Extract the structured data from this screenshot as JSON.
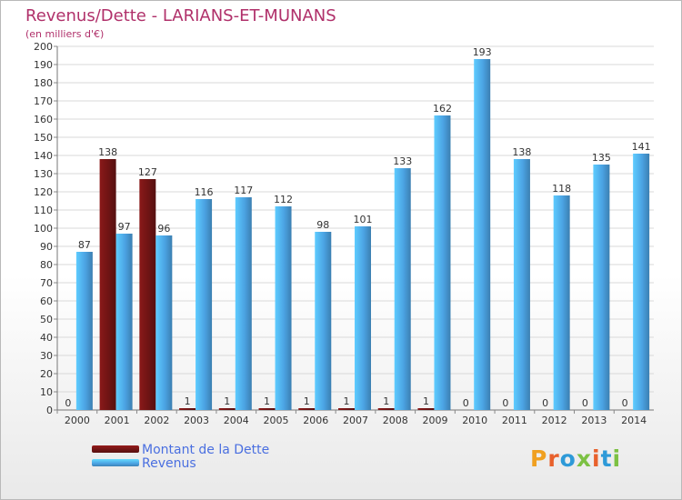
{
  "title": "Revenus/Dette - LARIANS-ET-MUNANS",
  "subtitle": "(en milliers d'€)",
  "brand": "Proxiti",
  "brand_colors": [
    "#f0a020",
    "#e8612c",
    "#2e9ad8",
    "#7cc143",
    "#e8612c",
    "#2e9ad8",
    "#7cc143"
  ],
  "colors": {
    "dette": "#6e1414",
    "revenus": "#4ba3e3",
    "title": "#b0306a",
    "legend_text": "#4a6fe0",
    "grid": "#d9d9d9"
  },
  "legend": {
    "items": [
      {
        "label": "Montant de la Dette",
        "color": "#6e1414"
      },
      {
        "label": "Revenus",
        "color": "#4ba3e3"
      }
    ]
  },
  "chart_data": {
    "type": "bar",
    "title": "Revenus/Dette - LARIANS-ET-MUNANS",
    "ylabel": "(en milliers d'€)",
    "xlabel": "",
    "ylim": [
      0,
      200
    ],
    "ytick_step": 10,
    "grid": true,
    "legend_position": "bottom-left",
    "categories": [
      "2000",
      "2001",
      "2002",
      "2003",
      "2004",
      "2005",
      "2006",
      "2007",
      "2008",
      "2009",
      "2010",
      "2011",
      "2012",
      "2013",
      "2014"
    ],
    "series": [
      {
        "name": "Montant de la Dette",
        "color": "#6e1414",
        "values": [
          0,
          138,
          127,
          1,
          1,
          1,
          1,
          1,
          1,
          1,
          0,
          0,
          0,
          0,
          0
        ]
      },
      {
        "name": "Revenus",
        "color": "#4ba3e3",
        "values": [
          87,
          97,
          96,
          116,
          117,
          112,
          98,
          101,
          133,
          162,
          193,
          138,
          118,
          135,
          141
        ]
      }
    ]
  }
}
